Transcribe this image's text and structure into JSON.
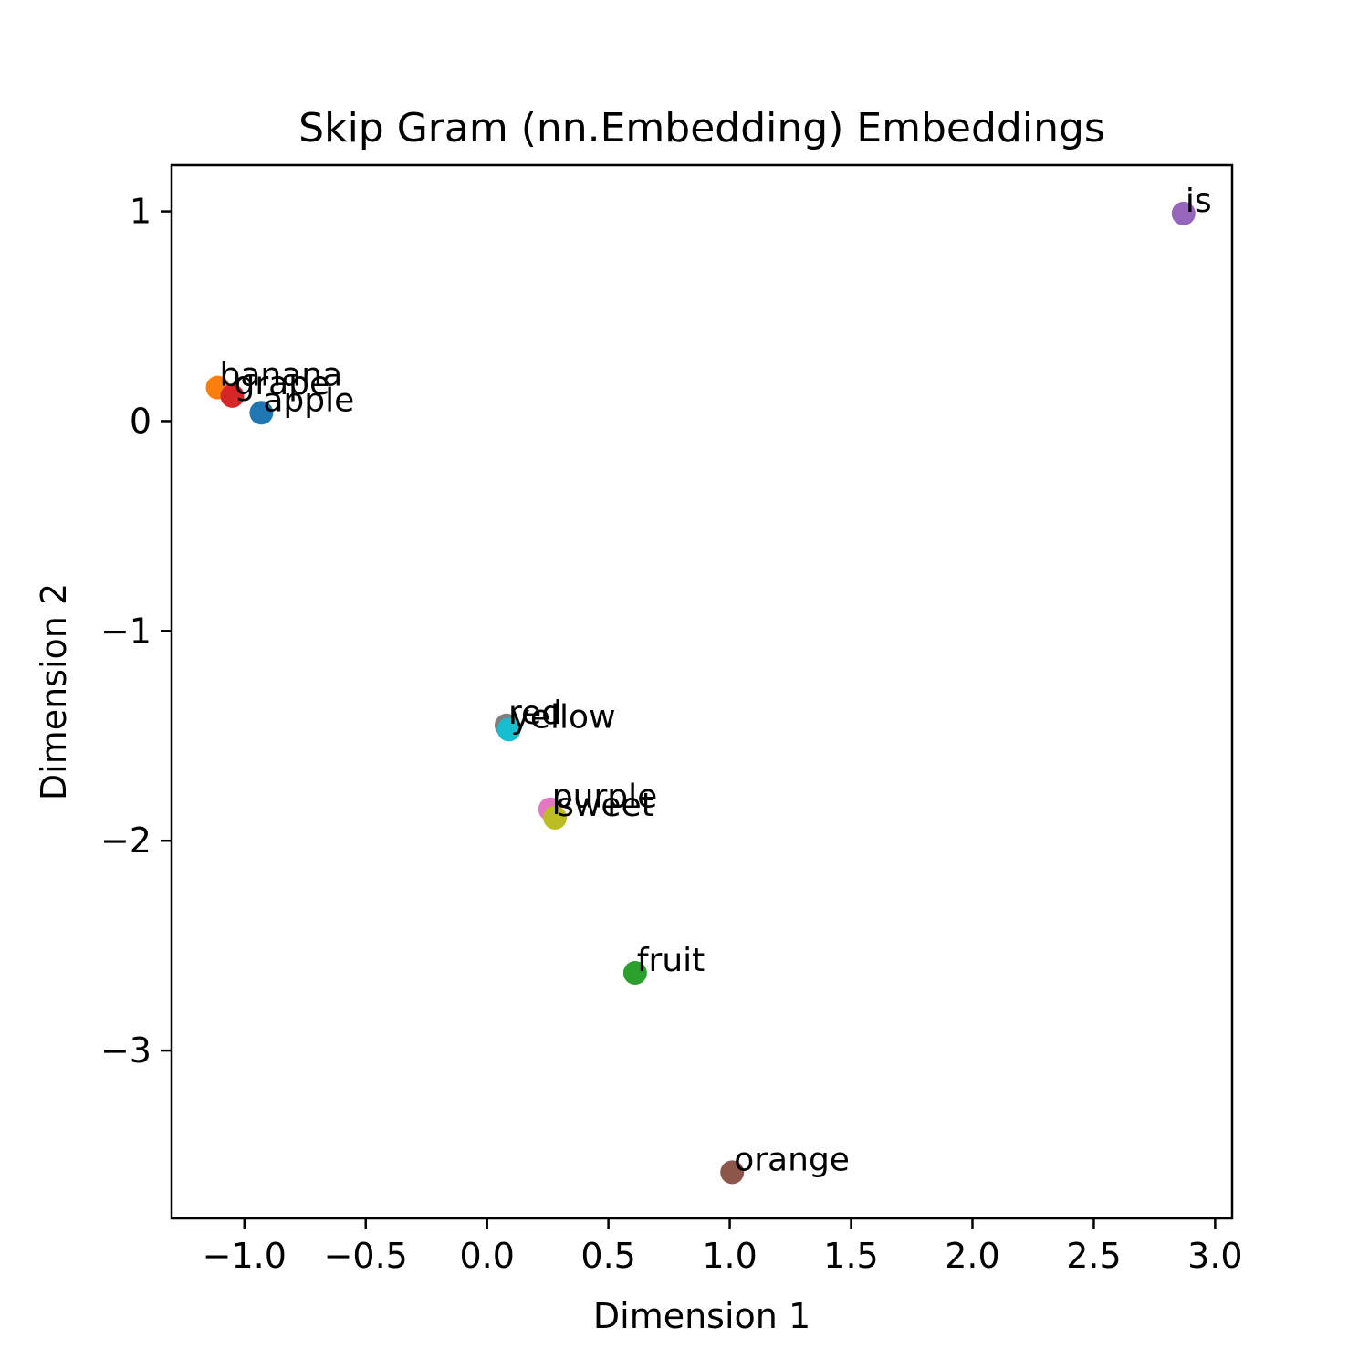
{
  "chart_data": {
    "type": "scatter",
    "title": "Skip Gram (nn.Embedding) Embeddings",
    "xlabel": "Dimension 1",
    "ylabel": "Dimension 2",
    "xlim": [
      -1.3,
      3.07
    ],
    "ylim": [
      -3.8,
      1.22
    ],
    "xticks": [
      -1.0,
      -0.5,
      0.0,
      0.5,
      1.0,
      1.5,
      2.0,
      2.5,
      3.0
    ],
    "xtick_labels": [
      "−1.0",
      "−0.5",
      "0.0",
      "0.5",
      "1.0",
      "1.5",
      "2.0",
      "2.5",
      "3.0"
    ],
    "yticks": [
      1,
      0,
      -1,
      -2,
      -3
    ],
    "ytick_labels": [
      "1",
      "0",
      "−1",
      "−2",
      "−3"
    ],
    "grid": false,
    "points": [
      {
        "label": "apple",
        "x": -0.93,
        "y": 0.04,
        "color": "#1f77b4"
      },
      {
        "label": "banana",
        "x": -1.11,
        "y": 0.16,
        "color": "#ff7f0e"
      },
      {
        "label": "fruit",
        "x": 0.61,
        "y": -2.63,
        "color": "#2ca02c"
      },
      {
        "label": "grape",
        "x": -1.05,
        "y": 0.12,
        "color": "#d62728"
      },
      {
        "label": "is",
        "x": 2.87,
        "y": 0.99,
        "color": "#9467bd"
      },
      {
        "label": "orange",
        "x": 1.01,
        "y": -3.58,
        "color": "#8c564b"
      },
      {
        "label": "purple",
        "x": 0.26,
        "y": -1.85,
        "color": "#e377c2"
      },
      {
        "label": "red",
        "x": 0.08,
        "y": -1.45,
        "color": "#7f7f7f"
      },
      {
        "label": "sweet",
        "x": 0.28,
        "y": -1.89,
        "color": "#bcbd22"
      },
      {
        "label": "yellow",
        "x": 0.09,
        "y": -1.47,
        "color": "#17becf"
      }
    ]
  }
}
